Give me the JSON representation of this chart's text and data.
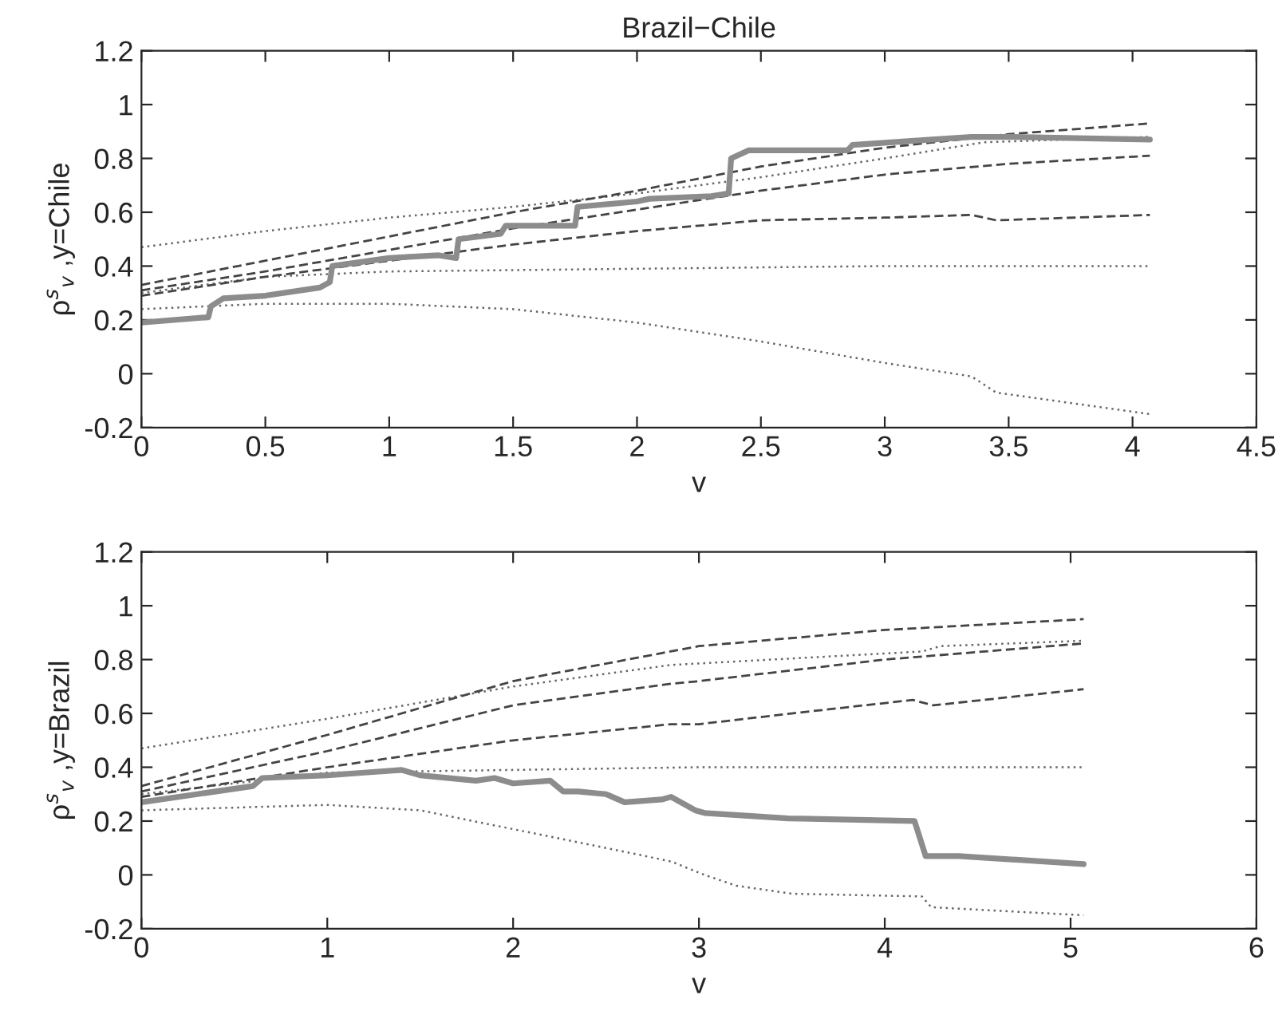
{
  "chart_data": [
    {
      "type": "line",
      "title": "Brazil−Chile",
      "xlabel": "v",
      "ylabel": "ρ$^{s}$$_{v}$ ,y=Chile",
      "xlim": [
        0,
        4.5
      ],
      "xticks": [
        0,
        0.5,
        1,
        1.5,
        2,
        2.5,
        3,
        3.5,
        4,
        4.5
      ],
      "ylim": [
        -0.2,
        1.2
      ],
      "yticks": [
        -0.2,
        0,
        0.2,
        0.4,
        0.6,
        0.8,
        1,
        1.2
      ],
      "grid": false,
      "series": [
        {
          "color": "#666666",
          "line_style": "dotted",
          "x": [
            0,
            0.5,
            1,
            1.5,
            2,
            2.5,
            3,
            3.4,
            4.07
          ],
          "values": [
            0.47,
            0.53,
            0.58,
            0.62,
            0.67,
            0.73,
            0.8,
            0.86,
            0.88
          ]
        },
        {
          "color": "#666666",
          "line_style": "dotted",
          "x": [
            0,
            0.5,
            1,
            2,
            3,
            4.07
          ],
          "values": [
            0.3,
            0.36,
            0.38,
            0.39,
            0.4,
            0.4
          ]
        },
        {
          "color": "#666666",
          "line_style": "dotted",
          "x": [
            0,
            0.5,
            1,
            1.5,
            2,
            2.5,
            3,
            3.35,
            3.45,
            4.07
          ],
          "values": [
            0.24,
            0.26,
            0.26,
            0.24,
            0.19,
            0.12,
            0.04,
            -0.01,
            -0.07,
            -0.15
          ]
        },
        {
          "color": "#444444",
          "line_style": "dashed",
          "x": [
            0,
            0.5,
            1,
            1.5,
            2,
            2.5,
            3,
            3.5,
            4.07
          ],
          "values": [
            0.33,
            0.42,
            0.51,
            0.6,
            0.68,
            0.77,
            0.84,
            0.89,
            0.93
          ]
        },
        {
          "color": "#444444",
          "line_style": "dashed",
          "x": [
            0,
            0.5,
            1,
            1.5,
            2,
            2.5,
            3,
            3.5,
            4.07
          ],
          "values": [
            0.31,
            0.38,
            0.46,
            0.54,
            0.61,
            0.68,
            0.74,
            0.78,
            0.81
          ]
        },
        {
          "color": "#444444",
          "line_style": "dashed",
          "x": [
            0,
            0.5,
            1,
            1.5,
            2,
            2.5,
            3,
            3.35,
            3.45,
            4.07
          ],
          "values": [
            0.29,
            0.36,
            0.42,
            0.48,
            0.53,
            0.57,
            0.58,
            0.59,
            0.57,
            0.59
          ]
        },
        {
          "color": "#8c8c8c",
          "line_style": "solid",
          "x": [
            0,
            0.27,
            0.28,
            0.33,
            0.5,
            0.72,
            0.76,
            0.77,
            1.0,
            1.2,
            1.27,
            1.28,
            1.45,
            1.47,
            1.75,
            1.76,
            2.0,
            2.05,
            2.3,
            2.37,
            2.38,
            2.45,
            2.85,
            2.87,
            3.19,
            3.35,
            3.5,
            4.07
          ],
          "values": [
            0.19,
            0.21,
            0.25,
            0.28,
            0.29,
            0.32,
            0.34,
            0.4,
            0.43,
            0.44,
            0.43,
            0.5,
            0.52,
            0.55,
            0.55,
            0.62,
            0.64,
            0.65,
            0.66,
            0.67,
            0.8,
            0.83,
            0.83,
            0.85,
            0.87,
            0.88,
            0.88,
            0.87
          ]
        }
      ]
    },
    {
      "type": "line",
      "xlabel": "v",
      "ylabel": "ρ$^{s}$$_{v}$ ,y=Brazil",
      "xlim": [
        0,
        6
      ],
      "xticks": [
        0,
        1,
        2,
        3,
        4,
        5,
        6
      ],
      "ylim": [
        -0.2,
        1.2
      ],
      "yticks": [
        -0.2,
        0,
        0.2,
        0.4,
        0.6,
        0.8,
        1,
        1.2
      ],
      "grid": false,
      "series": [
        {
          "color": "#666666",
          "line_style": "dotted",
          "x": [
            0,
            1,
            2,
            2.85,
            4.2,
            4.3,
            5.07
          ],
          "values": [
            0.47,
            0.58,
            0.7,
            0.78,
            0.83,
            0.85,
            0.87
          ]
        },
        {
          "color": "#666666",
          "line_style": "dotted",
          "x": [
            0,
            1,
            2,
            3,
            5.07
          ],
          "values": [
            0.3,
            0.38,
            0.39,
            0.4,
            0.4
          ]
        },
        {
          "color": "#666666",
          "line_style": "dotted",
          "x": [
            0,
            1,
            1.5,
            2,
            2.5,
            2.85,
            3.03,
            3.2,
            3.5,
            4.2,
            4.25,
            5.07
          ],
          "values": [
            0.24,
            0.26,
            0.24,
            0.17,
            0.1,
            0.05,
            0.0,
            -0.04,
            -0.07,
            -0.08,
            -0.12,
            -0.15
          ]
        },
        {
          "color": "#444444",
          "line_style": "dashed",
          "x": [
            0,
            1,
            2,
            3,
            4,
            5.07
          ],
          "values": [
            0.33,
            0.52,
            0.72,
            0.85,
            0.91,
            0.95
          ]
        },
        {
          "color": "#444444",
          "line_style": "dashed",
          "x": [
            0,
            1,
            2,
            2.85,
            3,
            4,
            5.07
          ],
          "values": [
            0.31,
            0.46,
            0.63,
            0.71,
            0.72,
            0.8,
            0.86
          ]
        },
        {
          "color": "#444444",
          "line_style": "dashed",
          "x": [
            0,
            1,
            2,
            2.85,
            3,
            3.5,
            4.15,
            4.26,
            5.07
          ],
          "values": [
            0.29,
            0.4,
            0.5,
            0.56,
            0.56,
            0.6,
            0.65,
            0.63,
            0.69
          ]
        },
        {
          "color": "#8c8c8c",
          "line_style": "solid",
          "x": [
            0,
            0.3,
            0.6,
            0.65,
            1,
            1.2,
            1.4,
            1.5,
            1.8,
            1.9,
            2.0,
            2.2,
            2.27,
            2.35,
            2.5,
            2.6,
            2.8,
            2.85,
            2.98,
            3.03,
            3.48,
            4.16,
            4.22,
            4.4,
            5.07
          ],
          "values": [
            0.27,
            0.3,
            0.33,
            0.36,
            0.37,
            0.38,
            0.39,
            0.37,
            0.35,
            0.36,
            0.34,
            0.35,
            0.31,
            0.31,
            0.3,
            0.27,
            0.28,
            0.29,
            0.24,
            0.23,
            0.21,
            0.2,
            0.07,
            0.07,
            0.04
          ]
        }
      ]
    }
  ]
}
